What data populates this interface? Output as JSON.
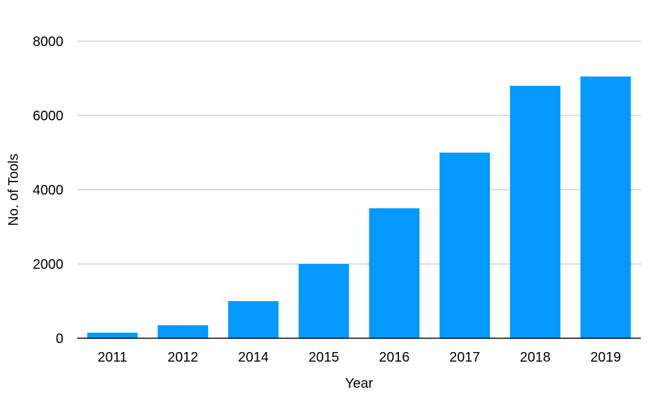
{
  "chart_data": {
    "type": "bar",
    "title": "",
    "xlabel": "Year",
    "ylabel": "No. of Tools",
    "categories": [
      "2011",
      "2012",
      "2014",
      "2015",
      "2016",
      "2017",
      "2018",
      "2019"
    ],
    "values": [
      150,
      350,
      1000,
      2000,
      3500,
      5000,
      6800,
      7050
    ],
    "ylim": [
      0,
      8000
    ],
    "yticks": [
      "0",
      "2000",
      "4000",
      "6000",
      "8000"
    ],
    "grid": true,
    "legend": "none",
    "bar_color": "#0399FD",
    "grid_color": "#B8B8B8",
    "axis_color": "#000000"
  }
}
